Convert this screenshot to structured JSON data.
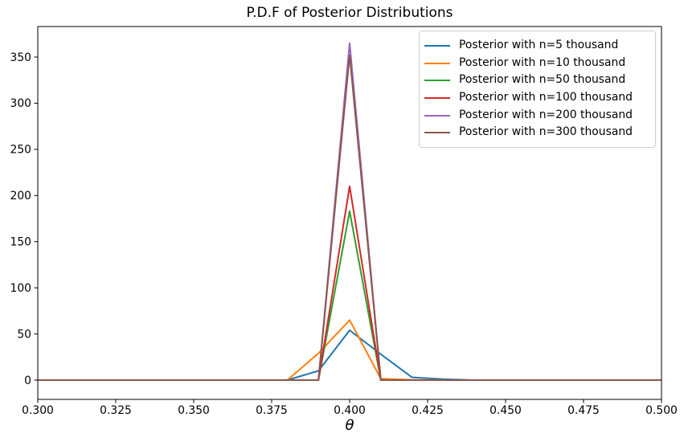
{
  "chart_data": {
    "type": "line",
    "title": "P.D.F of Posterior Distributions",
    "xlabel": "θ",
    "ylabel": "",
    "xlim": [
      0.3,
      0.5
    ],
    "ylim": [
      -20.9,
      383.1
    ],
    "xticks": [
      0.3,
      0.325,
      0.35,
      0.375,
      0.4,
      0.425,
      0.45,
      0.475,
      0.5
    ],
    "xtick_labels": [
      "0.300",
      "0.325",
      "0.350",
      "0.375",
      "0.400",
      "0.425",
      "0.450",
      "0.475",
      "0.500"
    ],
    "yticks": [
      0,
      50,
      100,
      150,
      200,
      250,
      300,
      350
    ],
    "ytick_labels": [
      "0",
      "50",
      "100",
      "150",
      "200",
      "250",
      "300",
      "350"
    ],
    "grid": false,
    "legend_position": "upper right",
    "axis_color": "#000000",
    "text_color": "#000000",
    "x": [
      0.3,
      0.31,
      0.32,
      0.33,
      0.34,
      0.35,
      0.36,
      0.37,
      0.38,
      0.39,
      0.4,
      0.41,
      0.42,
      0.43,
      0.44,
      0.45,
      0.46,
      0.47,
      0.48,
      0.49,
      0.5
    ],
    "series": [
      {
        "name": "Posterior with n=5 thousand",
        "color": "#1f77b4",
        "values": [
          0,
          0,
          0,
          0,
          0,
          0,
          0,
          0,
          0,
          10,
          54,
          28,
          3,
          1,
          0,
          0,
          0,
          0,
          0,
          0,
          0
        ]
      },
      {
        "name": "Posterior with n=10 thousand",
        "color": "#ff7f0e",
        "values": [
          0,
          0,
          0,
          0,
          0,
          0,
          0,
          0,
          0,
          29,
          65,
          1.5,
          0.3,
          0,
          0,
          0,
          0,
          0,
          0,
          0,
          0
        ]
      },
      {
        "name": "Posterior with n=50 thousand",
        "color": "#2ca02c",
        "values": [
          0,
          0,
          0,
          0,
          0,
          0,
          0,
          0,
          0,
          0,
          183,
          0,
          0,
          0,
          0,
          0,
          0,
          0,
          0,
          0,
          0
        ]
      },
      {
        "name": "Posterior with n=100 thousand",
        "color": "#d62728",
        "values": [
          0,
          0,
          0,
          0,
          0,
          0,
          0,
          0,
          0,
          0,
          210,
          0,
          0,
          0,
          0,
          0,
          0,
          0,
          0,
          0,
          0
        ]
      },
      {
        "name": "Posterior with n=200 thousand",
        "color": "#9467bd",
        "values": [
          0,
          0,
          0,
          0,
          0,
          0,
          0,
          0,
          0,
          0,
          365,
          0,
          0,
          0,
          0,
          0,
          0,
          0,
          0,
          0,
          0
        ]
      },
      {
        "name": "Posterior with n=300 thousand",
        "color": "#8c564b",
        "values": [
          0,
          0,
          0,
          0,
          0,
          0,
          0,
          0,
          0,
          0,
          352,
          0,
          0,
          0,
          0,
          0,
          0,
          0,
          0,
          0,
          0
        ]
      }
    ]
  }
}
